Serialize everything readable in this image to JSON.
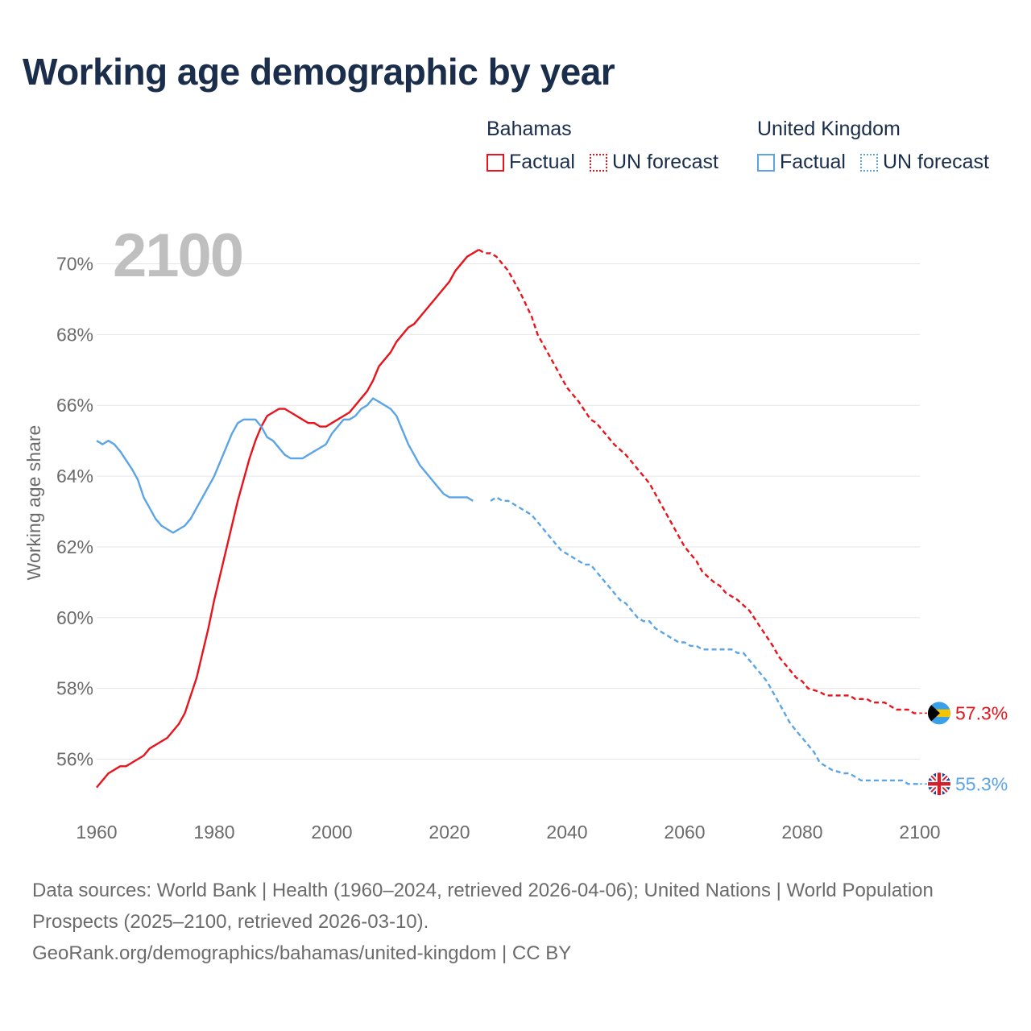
{
  "title": "Working age demographic by year",
  "year_watermark": "2100",
  "legend": {
    "groups": [
      {
        "country": "Bahamas",
        "color": "#e8131b",
        "factual_label": "Factual",
        "forecast_label": "UN forecast"
      },
      {
        "country": "United Kingdom",
        "color": "#5ba4e6",
        "factual_label": "Factual",
        "forecast_label": "UN forecast"
      }
    ]
  },
  "sources": {
    "line1": "Data sources: World Bank | Health (1960–2024, retrieved 2026-04-06); United Nations | World Population Prospects (2025–2100, retrieved 2026-03-10).",
    "line2": "GeoRank.org/demographics/bahamas/united-kingdom | CC BY"
  },
  "chart_data": {
    "type": "line",
    "title": "Working age demographic by year",
    "xlabel": "",
    "ylabel": "Working age share",
    "xlim": [
      1960,
      2100
    ],
    "ylim": [
      54.6,
      70.9
    ],
    "grid": true,
    "x_ticks": [
      1960,
      1980,
      2000,
      2020,
      2040,
      2060,
      2080,
      2100
    ],
    "x_tick_labels": [
      "1960",
      "1980",
      "2000",
      "2020",
      "2040",
      "2060",
      "2080",
      "2100"
    ],
    "y_ticks": [
      56,
      58,
      60,
      62,
      64,
      66,
      68,
      70
    ],
    "y_tick_labels": [
      "56%",
      "58%",
      "60%",
      "62%",
      "64%",
      "66%",
      "68%",
      "70%"
    ],
    "forecast_start": 2025,
    "series": [
      {
        "name": "Bahamas",
        "color": "#e8131b",
        "end_label": "57.3%",
        "flag": "bahamas-flag-icon",
        "points": [
          [
            1960,
            55.2
          ],
          [
            1962,
            55.6
          ],
          [
            1964,
            55.8
          ],
          [
            1965,
            55.8
          ],
          [
            1966,
            55.9
          ],
          [
            1968,
            56.1
          ],
          [
            1969,
            56.3
          ],
          [
            1971,
            56.5
          ],
          [
            1972,
            56.6
          ],
          [
            1974,
            57.0
          ],
          [
            1975,
            57.3
          ],
          [
            1977,
            58.3
          ],
          [
            1978,
            59.0
          ],
          [
            1979,
            59.7
          ],
          [
            1980,
            60.5
          ],
          [
            1982,
            61.9
          ],
          [
            1984,
            63.3
          ],
          [
            1986,
            64.5
          ],
          [
            1987,
            65.0
          ],
          [
            1988,
            65.4
          ],
          [
            1989,
            65.7
          ],
          [
            1991,
            65.9
          ],
          [
            1992,
            65.9
          ],
          [
            1993,
            65.8
          ],
          [
            1995,
            65.6
          ],
          [
            1996,
            65.5
          ],
          [
            1997,
            65.5
          ],
          [
            1998,
            65.4
          ],
          [
            1999,
            65.4
          ],
          [
            2000,
            65.5
          ],
          [
            2002,
            65.7
          ],
          [
            2003,
            65.8
          ],
          [
            2004,
            66.0
          ],
          [
            2006,
            66.4
          ],
          [
            2007,
            66.7
          ],
          [
            2008,
            67.1
          ],
          [
            2010,
            67.5
          ],
          [
            2011,
            67.8
          ],
          [
            2013,
            68.2
          ],
          [
            2014,
            68.3
          ],
          [
            2016,
            68.7
          ],
          [
            2018,
            69.1
          ],
          [
            2020,
            69.5
          ],
          [
            2021,
            69.8
          ],
          [
            2023,
            70.2
          ],
          [
            2025,
            70.4
          ],
          [
            2026,
            70.3
          ],
          [
            2027,
            70.3
          ],
          [
            2028,
            70.2
          ],
          [
            2030,
            69.8
          ],
          [
            2032,
            69.2
          ],
          [
            2034,
            68.5
          ],
          [
            2035,
            68.0
          ],
          [
            2037,
            67.4
          ],
          [
            2038,
            67.1
          ],
          [
            2040,
            66.5
          ],
          [
            2042,
            66.1
          ],
          [
            2044,
            65.6
          ],
          [
            2045,
            65.5
          ],
          [
            2046,
            65.3
          ],
          [
            2048,
            64.9
          ],
          [
            2050,
            64.6
          ],
          [
            2052,
            64.2
          ],
          [
            2054,
            63.8
          ],
          [
            2056,
            63.2
          ],
          [
            2057,
            62.9
          ],
          [
            2059,
            62.3
          ],
          [
            2060,
            62.0
          ],
          [
            2062,
            61.6
          ],
          [
            2063,
            61.3
          ],
          [
            2065,
            61.0
          ],
          [
            2066,
            60.9
          ],
          [
            2067,
            60.7
          ],
          [
            2069,
            60.5
          ],
          [
            2071,
            60.2
          ],
          [
            2073,
            59.7
          ],
          [
            2075,
            59.2
          ],
          [
            2076,
            58.9
          ],
          [
            2078,
            58.5
          ],
          [
            2079,
            58.3
          ],
          [
            2080,
            58.2
          ],
          [
            2081,
            58.0
          ],
          [
            2083,
            57.9
          ],
          [
            2084,
            57.8
          ],
          [
            2088,
            57.8
          ],
          [
            2089,
            57.7
          ],
          [
            2091,
            57.7
          ],
          [
            2092,
            57.6
          ],
          [
            2094,
            57.6
          ],
          [
            2095,
            57.5
          ],
          [
            2096,
            57.4
          ],
          [
            2098,
            57.4
          ],
          [
            2099,
            57.3
          ],
          [
            2100,
            57.3
          ]
        ]
      },
      {
        "name": "United Kingdom",
        "color": "#5ba4e6",
        "end_label": "55.3%",
        "flag": "uk-flag-icon",
        "points": [
          [
            1960,
            65.0
          ],
          [
            1961,
            64.9
          ],
          [
            1962,
            65.0
          ],
          [
            1963,
            64.9
          ],
          [
            1964,
            64.7
          ],
          [
            1966,
            64.2
          ],
          [
            1967,
            63.9
          ],
          [
            1968,
            63.4
          ],
          [
            1969,
            63.1
          ],
          [
            1970,
            62.8
          ],
          [
            1971,
            62.6
          ],
          [
            1972,
            62.5
          ],
          [
            1973,
            62.4
          ],
          [
            1974,
            62.5
          ],
          [
            1975,
            62.6
          ],
          [
            1976,
            62.8
          ],
          [
            1977,
            63.1
          ],
          [
            1978,
            63.4
          ],
          [
            1979,
            63.7
          ],
          [
            1980,
            64.0
          ],
          [
            1981,
            64.4
          ],
          [
            1982,
            64.8
          ],
          [
            1983,
            65.2
          ],
          [
            1984,
            65.5
          ],
          [
            1985,
            65.6
          ],
          [
            1987,
            65.6
          ],
          [
            1988,
            65.4
          ],
          [
            1989,
            65.1
          ],
          [
            1990,
            65.0
          ],
          [
            1992,
            64.6
          ],
          [
            1993,
            64.5
          ],
          [
            1995,
            64.5
          ],
          [
            1996,
            64.6
          ],
          [
            1998,
            64.8
          ],
          [
            1999,
            64.9
          ],
          [
            2000,
            65.2
          ],
          [
            2002,
            65.6
          ],
          [
            2003,
            65.6
          ],
          [
            2004,
            65.7
          ],
          [
            2005,
            65.9
          ],
          [
            2006,
            66.0
          ],
          [
            2007,
            66.2
          ],
          [
            2008,
            66.1
          ],
          [
            2010,
            65.9
          ],
          [
            2011,
            65.7
          ],
          [
            2012,
            65.3
          ],
          [
            2013,
            64.9
          ],
          [
            2015,
            64.3
          ],
          [
            2017,
            63.9
          ],
          [
            2018,
            63.7
          ],
          [
            2019,
            63.5
          ],
          [
            2020,
            63.4
          ],
          [
            2023,
            63.4
          ],
          [
            2024,
            63.3
          ],
          [
            2027,
            63.3
          ],
          [
            2028,
            63.4
          ],
          [
            2029,
            63.3
          ],
          [
            2030,
            63.3
          ],
          [
            2033,
            63.0
          ],
          [
            2034,
            62.9
          ],
          [
            2036,
            62.5
          ],
          [
            2038,
            62.1
          ],
          [
            2039,
            61.9
          ],
          [
            2041,
            61.7
          ],
          [
            2043,
            61.5
          ],
          [
            2044,
            61.5
          ],
          [
            2046,
            61.1
          ],
          [
            2048,
            60.7
          ],
          [
            2049,
            60.5
          ],
          [
            2050,
            60.4
          ],
          [
            2052,
            60.0
          ],
          [
            2053,
            59.9
          ],
          [
            2054,
            59.9
          ],
          [
            2055,
            59.7
          ],
          [
            2057,
            59.5
          ],
          [
            2058,
            59.4
          ],
          [
            2059,
            59.3
          ],
          [
            2060,
            59.3
          ],
          [
            2061,
            59.2
          ],
          [
            2062,
            59.2
          ],
          [
            2063,
            59.1
          ],
          [
            2068,
            59.1
          ],
          [
            2069,
            59.0
          ],
          [
            2070,
            59.0
          ],
          [
            2072,
            58.6
          ],
          [
            2074,
            58.2
          ],
          [
            2076,
            57.6
          ],
          [
            2078,
            57.0
          ],
          [
            2079,
            56.8
          ],
          [
            2081,
            56.4
          ],
          [
            2082,
            56.2
          ],
          [
            2083,
            55.9
          ],
          [
            2084,
            55.8
          ],
          [
            2085,
            55.7
          ],
          [
            2087,
            55.6
          ],
          [
            2088,
            55.6
          ],
          [
            2089,
            55.5
          ],
          [
            2090,
            55.4
          ],
          [
            2097,
            55.4
          ],
          [
            2098,
            55.3
          ],
          [
            2100,
            55.3
          ]
        ]
      }
    ]
  }
}
